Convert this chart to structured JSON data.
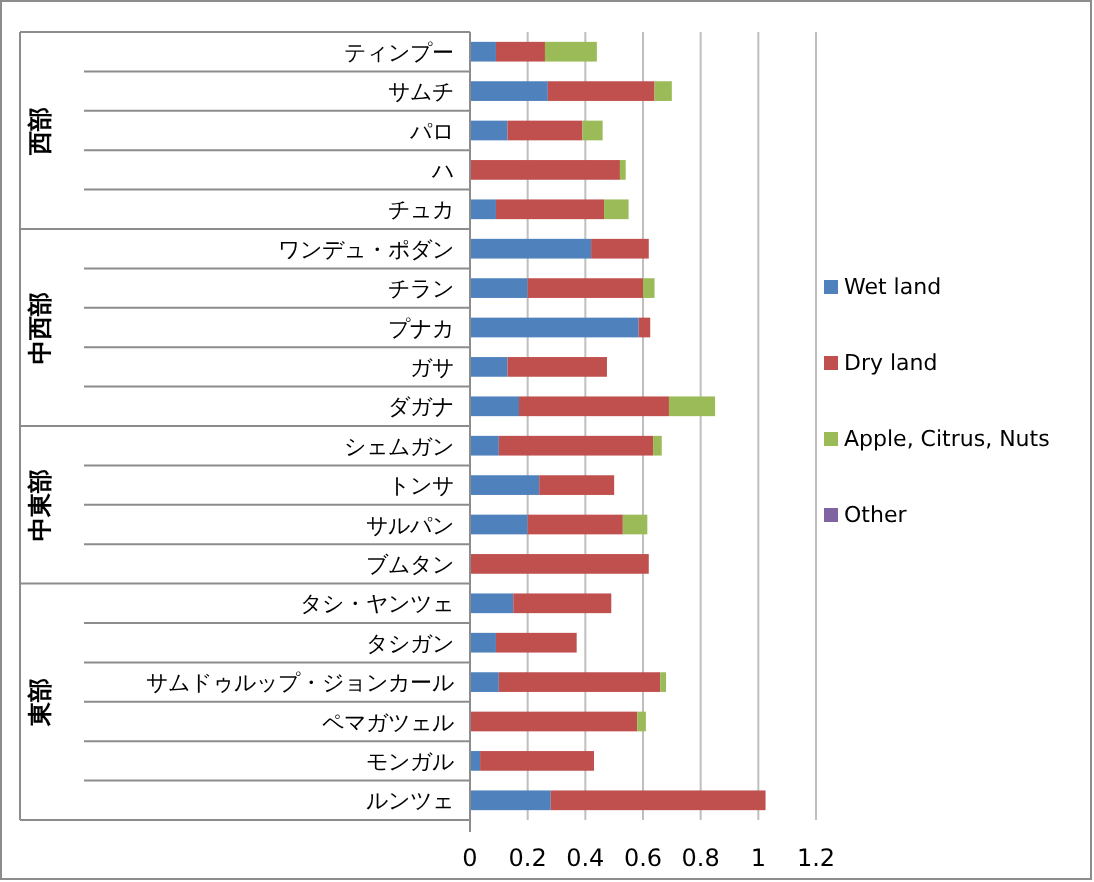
{
  "chart_data": {
    "type": "bar",
    "orientation": "horizontal",
    "stacked": true,
    "categories": [
      "ティンプー",
      "サムチ",
      "パロ",
      "ハ",
      "チュカ",
      "ワンデュ・ポダン",
      "チラン",
      "プナカ",
      "ガサ",
      "ダガナ",
      "シェムガン",
      "トンサ",
      "サルパン",
      "ブムタン",
      "タシ・ヤンツェ",
      "タシガン",
      "サムドゥルップ・ジョンカール",
      "ペマガツェル",
      "モンガル",
      "ルンツェ"
    ],
    "series": [
      {
        "name": "Wet land",
        "color": "#4f81bd",
        "values": [
          0.09,
          0.27,
          0.13,
          0,
          0.09,
          0.42,
          0.2,
          0.585,
          0.13,
          0.17,
          0.1,
          0.24,
          0.2,
          0,
          0.15,
          0.09,
          0.1,
          0,
          0.035,
          0.28
        ]
      },
      {
        "name": "Dry land",
        "color": "#c0504d",
        "values": [
          0.17,
          0.37,
          0.26,
          0.52,
          0.375,
          0.2,
          0.4,
          0.04,
          0.345,
          0.52,
          0.535,
          0.26,
          0.33,
          0.62,
          0.34,
          0.28,
          0.56,
          0.58,
          0.395,
          0.745
        ]
      },
      {
        "name": "Apple, Citrus, Nuts",
        "color": "#9bbb59",
        "values": [
          0.18,
          0.06,
          0.07,
          0.02,
          0.085,
          0,
          0.04,
          0,
          0,
          0.16,
          0.03,
          0,
          0.085,
          0,
          0,
          0,
          0.02,
          0.03,
          0,
          0
        ]
      },
      {
        "name": "Other",
        "color": "#8064a2",
        "values": [
          0,
          0,
          0,
          0,
          0,
          0,
          0,
          0,
          0,
          0,
          0,
          0,
          0,
          0,
          0,
          0,
          0,
          0,
          0,
          0
        ]
      }
    ],
    "xlim": [
      0,
      1.2
    ],
    "xticks": [
      0,
      0.2,
      0.4,
      0.6,
      0.8,
      1,
      1.2
    ],
    "grid": "x",
    "legend": "right",
    "annotations": [
      "西部",
      "中西部",
      "中東部",
      "東部"
    ]
  }
}
